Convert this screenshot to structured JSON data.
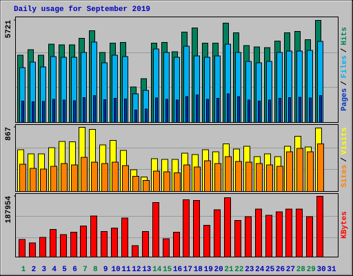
{
  "chart_data": [
    {
      "type": "bar",
      "title": "Daily usage for September 2019",
      "legend_separator": "/",
      "ylim": [
        0,
        5721
      ],
      "yticks": [
        5721
      ],
      "series": [
        {
          "name": "Hits",
          "color": "#00805C",
          "values": [
            3775,
            4085,
            3775,
            4397,
            4358,
            4358,
            4708,
            5136,
            3930,
            4436,
            4475,
            1985,
            2451,
            4436,
            4475,
            3969,
            5058,
            5292,
            4436,
            4436,
            5564,
            5019,
            4319,
            4241,
            4202,
            4553,
            5019,
            5097,
            4630,
            5721,
            0
          ]
        },
        {
          "name": "Files",
          "color": "#00B0F0",
          "values": [
            3073,
            3384,
            3112,
            3696,
            3657,
            3657,
            3929,
            4512,
            3345,
            3773,
            3696,
            1595,
            1789,
            4123,
            3929,
            3657,
            4279,
            3734,
            3657,
            3734,
            4396,
            3929,
            3423,
            3345,
            3423,
            3929,
            4007,
            4007,
            4046,
            4551,
            0
          ]
        },
        {
          "name": "Pages",
          "color": "#0030C0",
          "values": [
            1200,
            1150,
            1180,
            1300,
            1250,
            1220,
            1400,
            1500,
            1280,
            1350,
            1320,
            700,
            760,
            1380,
            1300,
            1260,
            1450,
            1550,
            1300,
            1350,
            1600,
            1450,
            1250,
            1200,
            1250,
            1350,
            1400,
            1420,
            1380,
            1500,
            0
          ]
        }
      ]
    },
    {
      "type": "bar",
      "legend_separator": "/",
      "ylim": [
        0,
        867
      ],
      "yticks": [
        867
      ],
      "series": [
        {
          "name": "Visits",
          "color": "#FFFF00",
          "values": [
            565,
            509,
            509,
            593,
            678,
            669,
            867,
            838,
            631,
            688,
            556,
            292,
            198,
            443,
            433,
            433,
            518,
            499,
            565,
            537,
            641,
            575,
            612,
            471,
            509,
            471,
            612,
            744,
            603,
            857,
            0
          ]
        },
        {
          "name": "Sites",
          "color": "#FF8000",
          "values": [
            367,
            311,
            301,
            339,
            377,
            358,
            462,
            396,
            377,
            396,
            349,
            207,
            151,
            273,
            264,
            254,
            358,
            330,
            414,
            377,
            471,
            405,
            396,
            377,
            358,
            339,
            537,
            584,
            537,
            641,
            0
          ]
        }
      ]
    },
    {
      "type": "bar",
      "ylim": [
        0,
        187954
      ],
      "yticks": [
        187954
      ],
      "categories": [
        "1",
        "2",
        "3",
        "4",
        "5",
        "6",
        "7",
        "8",
        "9",
        "10",
        "11",
        "12",
        "13",
        "14",
        "15",
        "16",
        "17",
        "18",
        "19",
        "20",
        "21",
        "22",
        "23",
        "24",
        "25",
        "26",
        "27",
        "28",
        "29",
        "30",
        "31"
      ],
      "category_colors": [
        "#008040",
        "#0000C0",
        "#0000C0",
        "#0000C0",
        "#0000C0",
        "#0000C0",
        "#008040",
        "#008040",
        "#0000C0",
        "#0000C0",
        "#0000C0",
        "#0000C0",
        "#0000C0",
        "#008040",
        "#008040",
        "#0000C0",
        "#0000C0",
        "#0000C0",
        "#0000C0",
        "#0000C0",
        "#008040",
        "#008040",
        "#0000C0",
        "#0000C0",
        "#0000C0",
        "#0000C0",
        "#0000C0",
        "#008040",
        "#008040",
        "#0000C0",
        "#0000C0"
      ],
      "series": [
        {
          "name": "KBytes",
          "color": "#FF0000",
          "values": [
            54638,
            43710,
            61194,
            85235,
            69936,
            76493,
            96162,
            126759,
            78678,
            89606,
            120203,
            34968,
            78678,
            168284,
            56823,
            76493,
            177026,
            174840,
            98348,
            146429,
            183582,
            113646,
            124574,
            148614,
            128945,
            139872,
            148614,
            148614,
            124574,
            187954,
            0
          ]
        }
      ]
    }
  ]
}
